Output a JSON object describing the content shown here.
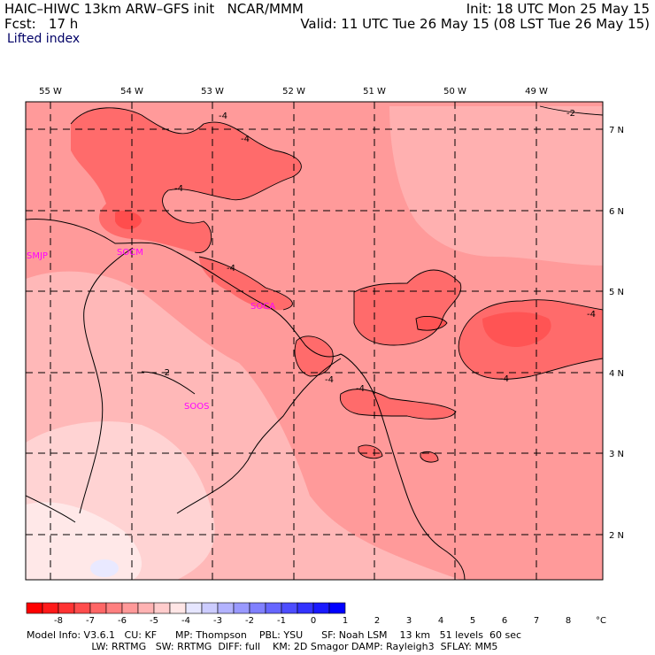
{
  "header": {
    "model": "HAIC–HIWC 13km ARW–GFS init   NCAR/MMM",
    "fcst": "Fcst:   17 h",
    "field": "Lifted index",
    "init": "Init: 18 UTC Mon 25 May 15",
    "valid": "Valid: 11 UTC Tue 26 May 15 (08 LST Tue 26 May 15)"
  },
  "map": {
    "lon_labels": [
      "55 W",
      "54 W",
      "53 W",
      "52 W",
      "51 W",
      "50 W",
      "49 W"
    ],
    "lat_labels": [
      "7 N",
      "6 N",
      "5 N",
      "4 N",
      "3 N",
      "2 N"
    ],
    "stations": [
      "SMJP",
      "SOCM",
      "SOCA",
      "SOOS"
    ],
    "contour_labels": [
      "-4",
      "-4",
      "-4",
      "-4",
      "-4",
      "-4",
      "-4",
      "-4",
      "-2",
      "-2"
    ]
  },
  "colorbar": {
    "ticks": [
      "-8",
      "-7",
      "-6",
      "-5",
      "-4",
      "-3",
      "-2",
      "-1",
      "0",
      "1",
      "2",
      "3",
      "4",
      "5",
      "6",
      "7",
      "8"
    ],
    "unit": "°C",
    "colors": [
      "#ff0000",
      "#ff1a1a",
      "#ff3333",
      "#ff4d4d",
      "#ff6666",
      "#ff8080",
      "#ff9999",
      "#ffb3b3",
      "#ffcccc",
      "#ffe6e6",
      "#e6e6ff",
      "#ccccff",
      "#b3b3ff",
      "#9999ff",
      "#8080ff",
      "#6666ff",
      "#4d4dff",
      "#3333ff",
      "#1a1aff",
      "#0000ff"
    ]
  },
  "footer": {
    "line1": "Model Info: V3.6.1   CU: KF      MP: Thompson    PBL: YSU      SF: Noah LSM    13 km   51 levels  60 sec",
    "line2": "                     LW: RRTMG   SW: RRTMG  DIFF: full    KM: 2D Smagor DAMP: Rayleigh3  SFLAY: MM5"
  }
}
